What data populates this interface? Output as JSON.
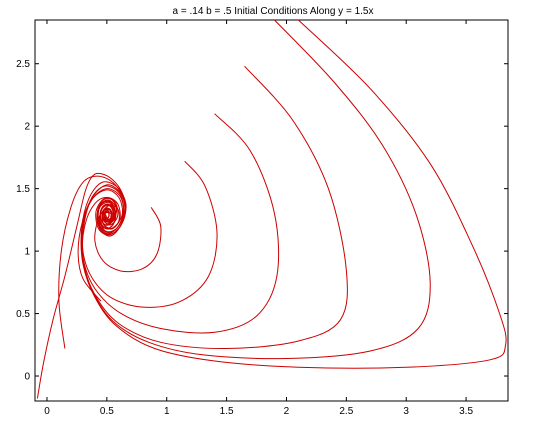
{
  "chart_data": {
    "type": "line",
    "title": "a = .14 b = .5 Initial Conditions Along y = 1.5x",
    "xlabel": "",
    "ylabel": "",
    "xlim": [
      -0.1,
      3.85
    ],
    "ylim": [
      -0.2,
      2.85
    ],
    "x_ticks": [
      0,
      0.5,
      1,
      1.5,
      2,
      2.5,
      3,
      3.5
    ],
    "x_tick_labels": [
      "0",
      "0.5",
      "1",
      "1.5",
      "2",
      "2.5",
      "3",
      "3.5"
    ],
    "y_ticks": [
      0,
      0.5,
      1,
      1.5,
      2,
      2.5
    ],
    "y_tick_labels": [
      "0",
      "0.5",
      "1",
      "1.5",
      "2",
      "2.5"
    ],
    "grid": false,
    "line_color": "#cc0000",
    "equilibrium": [
      0.5,
      1.29
    ],
    "series": [
      {
        "points": [
          [
            -0.08,
            -0.18
          ],
          [
            -0.03,
            0.1
          ],
          [
            0.05,
            0.45
          ],
          [
            0.15,
            0.8
          ],
          [
            0.25,
            1.2
          ],
          [
            0.32,
            1.48
          ],
          [
            0.38,
            1.6
          ],
          [
            0.45,
            1.62
          ],
          [
            0.55,
            1.57
          ],
          [
            0.63,
            1.46
          ],
          [
            0.65,
            1.32
          ],
          [
            0.6,
            1.18
          ],
          [
            0.52,
            1.12
          ],
          [
            0.44,
            1.18
          ],
          [
            0.42,
            1.3
          ],
          [
            0.46,
            1.4
          ],
          [
            0.53,
            1.42
          ],
          [
            0.58,
            1.35
          ],
          [
            0.56,
            1.25
          ],
          [
            0.5,
            1.22
          ],
          [
            0.47,
            1.28
          ],
          [
            0.5,
            1.33
          ],
          [
            0.53,
            1.3
          ]
        ]
      },
      {
        "points": [
          [
            0.15,
            0.22
          ],
          [
            0.1,
            0.6
          ],
          [
            0.12,
            1.0
          ],
          [
            0.2,
            1.35
          ],
          [
            0.3,
            1.55
          ],
          [
            0.42,
            1.6
          ],
          [
            0.55,
            1.55
          ],
          [
            0.64,
            1.42
          ],
          [
            0.65,
            1.28
          ],
          [
            0.58,
            1.16
          ],
          [
            0.48,
            1.14
          ],
          [
            0.42,
            1.24
          ],
          [
            0.44,
            1.36
          ],
          [
            0.52,
            1.4
          ],
          [
            0.57,
            1.32
          ],
          [
            0.54,
            1.24
          ],
          [
            0.49,
            1.25
          ],
          [
            0.49,
            1.31
          ],
          [
            0.52,
            1.32
          ]
        ]
      },
      {
        "points": [
          [
            0.45,
            0.6
          ],
          [
            0.3,
            0.78
          ],
          [
            0.26,
            1.0
          ],
          [
            0.3,
            1.25
          ],
          [
            0.38,
            1.42
          ],
          [
            0.5,
            1.49
          ],
          [
            0.6,
            1.43
          ],
          [
            0.63,
            1.3
          ],
          [
            0.57,
            1.2
          ],
          [
            0.49,
            1.18
          ],
          [
            0.44,
            1.26
          ],
          [
            0.47,
            1.35
          ],
          [
            0.54,
            1.36
          ],
          [
            0.56,
            1.28
          ],
          [
            0.51,
            1.24
          ],
          [
            0.48,
            1.3
          ],
          [
            0.51,
            1.31
          ]
        ]
      },
      {
        "points": [
          [
            0.87,
            1.35
          ],
          [
            0.95,
            1.2
          ],
          [
            0.92,
            0.98
          ],
          [
            0.8,
            0.86
          ],
          [
            0.62,
            0.84
          ],
          [
            0.47,
            0.92
          ],
          [
            0.4,
            1.08
          ],
          [
            0.43,
            1.26
          ],
          [
            0.51,
            1.36
          ],
          [
            0.59,
            1.34
          ],
          [
            0.6,
            1.24
          ],
          [
            0.54,
            1.18
          ],
          [
            0.47,
            1.22
          ],
          [
            0.47,
            1.32
          ],
          [
            0.53,
            1.33
          ],
          [
            0.54,
            1.26
          ],
          [
            0.5,
            1.26
          ]
        ]
      },
      {
        "points": [
          [
            1.15,
            1.72
          ],
          [
            1.32,
            1.52
          ],
          [
            1.42,
            1.15
          ],
          [
            1.35,
            0.8
          ],
          [
            1.12,
            0.6
          ],
          [
            0.82,
            0.55
          ],
          [
            0.55,
            0.62
          ],
          [
            0.38,
            0.78
          ],
          [
            0.3,
            1.0
          ],
          [
            0.32,
            1.22
          ],
          [
            0.4,
            1.38
          ],
          [
            0.5,
            1.43
          ],
          [
            0.59,
            1.38
          ],
          [
            0.61,
            1.26
          ],
          [
            0.55,
            1.18
          ],
          [
            0.48,
            1.2
          ],
          [
            0.46,
            1.3
          ],
          [
            0.52,
            1.34
          ],
          [
            0.55,
            1.28
          ],
          [
            0.51,
            1.25
          ]
        ]
      },
      {
        "points": [
          [
            1.4,
            2.1
          ],
          [
            1.7,
            1.8
          ],
          [
            1.9,
            1.3
          ],
          [
            1.92,
            0.8
          ],
          [
            1.75,
            0.48
          ],
          [
            1.4,
            0.35
          ],
          [
            0.95,
            0.38
          ],
          [
            0.62,
            0.5
          ],
          [
            0.4,
            0.7
          ],
          [
            0.3,
            0.95
          ],
          [
            0.3,
            1.22
          ],
          [
            0.38,
            1.42
          ],
          [
            0.5,
            1.5
          ],
          [
            0.61,
            1.44
          ],
          [
            0.64,
            1.3
          ],
          [
            0.58,
            1.18
          ],
          [
            0.49,
            1.16
          ],
          [
            0.44,
            1.25
          ],
          [
            0.47,
            1.36
          ],
          [
            0.54,
            1.37
          ],
          [
            0.57,
            1.29
          ],
          [
            0.52,
            1.24
          ],
          [
            0.49,
            1.29
          ]
        ]
      },
      {
        "points": [
          [
            1.65,
            2.48
          ],
          [
            2.05,
            2.05
          ],
          [
            2.35,
            1.5
          ],
          [
            2.5,
            0.85
          ],
          [
            2.45,
            0.45
          ],
          [
            2.1,
            0.28
          ],
          [
            1.5,
            0.22
          ],
          [
            0.95,
            0.27
          ],
          [
            0.6,
            0.42
          ],
          [
            0.4,
            0.65
          ],
          [
            0.3,
            0.92
          ],
          [
            0.3,
            1.2
          ],
          [
            0.37,
            1.42
          ],
          [
            0.48,
            1.52
          ],
          [
            0.6,
            1.47
          ],
          [
            0.64,
            1.33
          ],
          [
            0.59,
            1.19
          ],
          [
            0.5,
            1.15
          ],
          [
            0.43,
            1.23
          ],
          [
            0.44,
            1.35
          ],
          [
            0.52,
            1.39
          ],
          [
            0.57,
            1.32
          ],
          [
            0.53,
            1.24
          ],
          [
            0.48,
            1.27
          ],
          [
            0.5,
            1.32
          ]
        ]
      },
      {
        "points": [
          [
            1.9,
            2.85
          ],
          [
            2.4,
            2.35
          ],
          [
            2.8,
            1.85
          ],
          [
            3.08,
            1.3
          ],
          [
            3.2,
            0.75
          ],
          [
            3.1,
            0.38
          ],
          [
            2.7,
            0.2
          ],
          [
            2.0,
            0.14
          ],
          [
            1.3,
            0.17
          ],
          [
            0.85,
            0.27
          ],
          [
            0.55,
            0.44
          ],
          [
            0.38,
            0.68
          ],
          [
            0.3,
            0.95
          ],
          [
            0.31,
            1.22
          ],
          [
            0.38,
            1.43
          ],
          [
            0.5,
            1.53
          ],
          [
            0.61,
            1.47
          ],
          [
            0.65,
            1.33
          ],
          [
            0.59,
            1.19
          ],
          [
            0.5,
            1.14
          ],
          [
            0.43,
            1.22
          ],
          [
            0.43,
            1.35
          ],
          [
            0.51,
            1.41
          ],
          [
            0.58,
            1.34
          ],
          [
            0.55,
            1.24
          ],
          [
            0.49,
            1.24
          ],
          [
            0.48,
            1.31
          ],
          [
            0.52,
            1.32
          ]
        ]
      },
      {
        "points": [
          [
            2.1,
            2.85
          ],
          [
            2.7,
            2.3
          ],
          [
            3.2,
            1.7
          ],
          [
            3.55,
            1.05
          ],
          [
            3.78,
            0.5
          ],
          [
            3.83,
            0.25
          ],
          [
            3.7,
            0.13
          ],
          [
            3.0,
            0.07
          ],
          [
            2.1,
            0.07
          ],
          [
            1.4,
            0.12
          ],
          [
            0.9,
            0.22
          ],
          [
            0.58,
            0.4
          ],
          [
            0.4,
            0.63
          ],
          [
            0.3,
            0.9
          ],
          [
            0.29,
            1.18
          ],
          [
            0.35,
            1.42
          ],
          [
            0.46,
            1.55
          ],
          [
            0.59,
            1.51
          ],
          [
            0.66,
            1.37
          ],
          [
            0.62,
            1.21
          ],
          [
            0.52,
            1.13
          ],
          [
            0.43,
            1.18
          ],
          [
            0.41,
            1.32
          ],
          [
            0.48,
            1.42
          ],
          [
            0.57,
            1.39
          ],
          [
            0.59,
            1.28
          ],
          [
            0.53,
            1.21
          ],
          [
            0.47,
            1.25
          ],
          [
            0.48,
            1.33
          ],
          [
            0.53,
            1.33
          ]
        ]
      }
    ]
  }
}
